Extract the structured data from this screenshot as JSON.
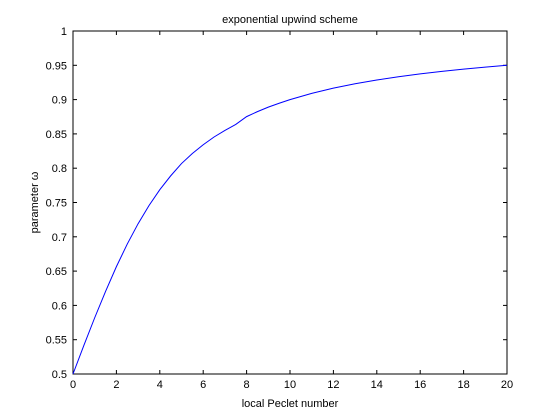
{
  "chart_data": {
    "type": "line",
    "title": "exponential upwind scheme",
    "xlabel": "local Peclet number",
    "ylabel": "parameter ω",
    "xlim": [
      0,
      20
    ],
    "ylim": [
      0.5,
      1
    ],
    "x_ticks": [
      0,
      2,
      4,
      6,
      8,
      10,
      12,
      14,
      16,
      18,
      20
    ],
    "y_ticks": [
      0.5,
      0.55,
      0.6,
      0.65,
      0.7,
      0.75,
      0.8,
      0.85,
      0.9,
      0.95,
      1
    ],
    "x_tick_labels": [
      "0",
      "2",
      "4",
      "6",
      "8",
      "10",
      "12",
      "14",
      "16",
      "18",
      "20"
    ],
    "y_tick_labels": [
      "0.5",
      "0.55",
      "0.6",
      "0.65",
      "0.7",
      "0.75",
      "0.8",
      "0.85",
      "0.9",
      "0.95",
      "1"
    ],
    "grid": false,
    "series": [
      {
        "color": "#0000ff",
        "x": [
          0,
          0.5,
          1,
          1.5,
          2,
          2.5,
          3,
          3.5,
          4,
          4.5,
          5,
          5.5,
          6,
          6.5,
          7,
          7.5,
          8,
          8.5,
          9,
          9.5,
          10,
          11,
          12,
          13,
          14,
          15,
          16,
          17,
          18,
          19,
          20
        ],
        "y": [
          0.5,
          0.5416,
          0.582,
          0.6204,
          0.6565,
          0.6894,
          0.7191,
          0.7455,
          0.7687,
          0.7888,
          0.8068,
          0.8214,
          0.8342,
          0.8455,
          0.855,
          0.8638,
          0.8752,
          0.8825,
          0.889,
          0.8947,
          0.9,
          0.9091,
          0.9167,
          0.9231,
          0.9286,
          0.9333,
          0.9375,
          0.9412,
          0.9444,
          0.9474,
          0.95
        ]
      }
    ]
  }
}
